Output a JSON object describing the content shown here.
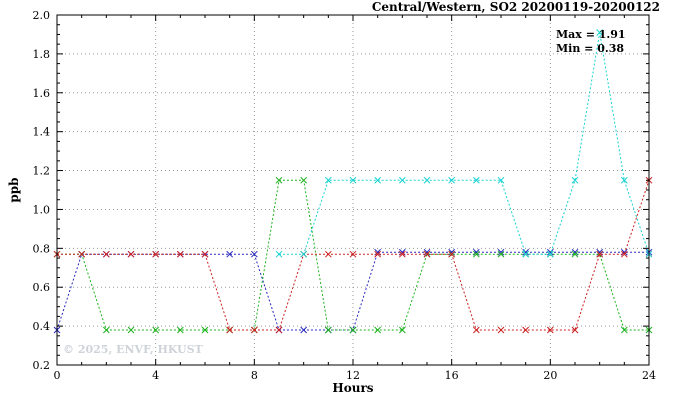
{
  "chart_data": {
    "type": "line",
    "title": "Central/Western, SO2 20200119-20200122",
    "xlabel": "Hours",
    "ylabel": "ppb",
    "xlim": [
      0,
      24
    ],
    "ylim": [
      0.2,
      2.0
    ],
    "xticks": [
      0,
      4,
      8,
      12,
      16,
      20,
      24
    ],
    "yticks": [
      0.2,
      0.4,
      0.6,
      0.8,
      1.0,
      1.2,
      1.4,
      1.6,
      1.8,
      2.0
    ],
    "x_minor_step": 1,
    "y_minor_step": 0.05,
    "grid": true,
    "legend": "none",
    "annotations": {
      "max_label": "Max = 1.91",
      "min_label": "Min = 0.38"
    },
    "max": 1.91,
    "min": 0.38,
    "watermark": "© 2025, ENVF, HKUST",
    "x": [
      0,
      1,
      2,
      3,
      4,
      5,
      6,
      7,
      8,
      9,
      10,
      11,
      12,
      13,
      14,
      15,
      16,
      17,
      18,
      19,
      20,
      21,
      22,
      23,
      24
    ],
    "series": [
      {
        "name": "station-blue",
        "color": "#2929c0",
        "values": [
          0.38,
          0.77,
          0.77,
          0.77,
          0.77,
          0.77,
          0.77,
          0.77,
          0.77,
          0.38,
          0.38,
          0.38,
          0.38,
          0.78,
          0.78,
          0.78,
          0.78,
          0.78,
          0.78,
          0.78,
          0.78,
          0.78,
          0.78,
          0.78,
          0.78
        ]
      },
      {
        "name": "station-green",
        "color": "#1db31d",
        "values": [
          0.77,
          0.77,
          0.38,
          0.38,
          0.38,
          0.38,
          0.38,
          0.38,
          0.38,
          1.15,
          1.15,
          0.38,
          0.38,
          0.38,
          0.38,
          0.77,
          0.77,
          0.77,
          0.77,
          0.77,
          0.77,
          0.77,
          0.77,
          0.38,
          0.38
        ]
      },
      {
        "name": "station-red",
        "color": "#cc2020",
        "values": [
          0.77,
          0.77,
          0.77,
          0.77,
          0.77,
          0.77,
          0.77,
          0.38,
          0.38,
          0.38,
          0.77,
          0.77,
          0.77,
          0.77,
          0.77,
          0.77,
          0.77,
          0.38,
          0.38,
          0.38,
          0.38,
          0.38,
          0.77,
          0.77,
          1.15
        ]
      },
      {
        "name": "station-cyan",
        "color": "#17d3d3",
        "values": [
          null,
          null,
          null,
          null,
          null,
          null,
          null,
          null,
          null,
          0.77,
          0.77,
          1.15,
          1.15,
          1.15,
          1.15,
          1.15,
          1.15,
          1.15,
          1.15,
          0.77,
          0.77,
          1.15,
          1.91,
          1.15,
          0.77
        ]
      }
    ]
  }
}
